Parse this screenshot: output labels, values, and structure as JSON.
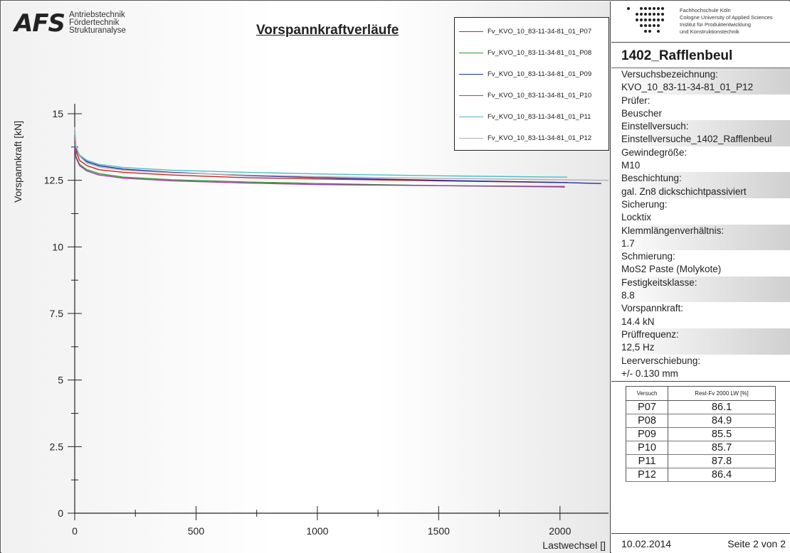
{
  "header": {
    "logo_mark": "AFS",
    "logo_lines": [
      "Antriebstechnik",
      "Fördertechnik",
      "Strukturanalyse"
    ],
    "chart_title": "Vorspannkraftverläufe"
  },
  "institute": {
    "lines": [
      "Fachhochschule Köln",
      "Cologne University of Applied Sciences",
      "Institut für Produktentwicklung",
      "und Konstruktionstechnik"
    ]
  },
  "project_title": "1402_Rafflenbeul",
  "info": [
    {
      "label": "Versuchsbezeichnung:",
      "value": "KVO_10_83-11-34-81_01_P12"
    },
    {
      "label": "Prüfer:",
      "value": "Beuscher"
    },
    {
      "label": "Einstellversuch:",
      "value": "Einstellversuche_1402_Rafflenbeul"
    },
    {
      "label": "Gewindegröße:",
      "value": "M10"
    },
    {
      "label": "Beschichtung:",
      "value": "gal. Zn8 dickschichtpassiviert"
    },
    {
      "label": "Sicherung:",
      "value": "Locktix"
    },
    {
      "label": "Klemmlängenverhältnis:",
      "value": "1.7"
    },
    {
      "label": "Schmierung:",
      "value": "MoS2 Paste (Molykote)"
    },
    {
      "label": "Festigkeitsklasse:",
      "value": "8.8"
    },
    {
      "label": "Vorspannkraft:",
      "value": "14.4 kN"
    },
    {
      "label": "Prüffrequenz:",
      "value": "12,5 Hz"
    },
    {
      "label": "Leerverschiebung:",
      "value": "+/- 0.130 mm"
    }
  ],
  "summary": {
    "headers": [
      "Versuch",
      "Rest-Fv 2000 LW [%]"
    ],
    "rows": [
      [
        "P07",
        "86.1"
      ],
      [
        "P08",
        "84.9"
      ],
      [
        "P09",
        "85.5"
      ],
      [
        "P10",
        "85.7"
      ],
      [
        "P11",
        "87.8"
      ],
      [
        "P12",
        "86.4"
      ]
    ]
  },
  "footer": {
    "date": "10.02.2014",
    "page": "Seite 2 von 2"
  },
  "chart_data": {
    "type": "line",
    "title": "Vorspannkraftverläufe",
    "xlabel": "Lastwechsel []",
    "ylabel": "Vorspannkraft [kN]",
    "xlim": [
      0,
      2200
    ],
    "ylim": [
      0,
      15
    ],
    "xticks": [
      0,
      500,
      1000,
      1500,
      2000
    ],
    "yticks": [
      0,
      2.5,
      5,
      7.5,
      10,
      12.5,
      15
    ],
    "yticks_labels": [
      "0",
      "2.5",
      "5",
      "7.5",
      "10",
      "12.5",
      "15"
    ],
    "grid": false,
    "legend_position": "top-right",
    "series": [
      {
        "name": "Fv_KVO_10_83-11-34-81_01_P07",
        "color": "#d42020",
        "x": [
          0,
          5,
          20,
          50,
          100,
          200,
          400,
          700,
          1000,
          1500,
          2000,
          2030
        ],
        "y": [
          14.1,
          13.6,
          13.25,
          13.05,
          12.9,
          12.8,
          12.7,
          12.6,
          12.55,
          12.48,
          12.42,
          12.42
        ]
      },
      {
        "name": "Fv_KVO_10_83-11-34-81_01_P08",
        "color": "#2e9a2e",
        "x": [
          0,
          5,
          20,
          50,
          100,
          200,
          400,
          700,
          1000,
          1500,
          2000,
          2020
        ],
        "y": [
          13.9,
          13.4,
          13.1,
          12.9,
          12.75,
          12.62,
          12.52,
          12.44,
          12.38,
          12.3,
          12.25,
          12.24
        ]
      },
      {
        "name": "Fv_KVO_10_83-11-34-81_01_P09",
        "color": "#1c2fa0",
        "x": [
          0,
          5,
          20,
          50,
          100,
          200,
          400,
          700,
          1000,
          1500,
          2000,
          2170
        ],
        "y": [
          14.2,
          13.7,
          13.4,
          13.2,
          13.05,
          12.92,
          12.8,
          12.68,
          12.6,
          12.5,
          12.42,
          12.38
        ]
      },
      {
        "name": "Fv_KVO_10_83-11-34-81_01_P10",
        "color": "#a93aa9",
        "x": [
          0,
          5,
          20,
          50,
          100,
          200,
          400,
          700,
          1000,
          1500,
          2000,
          2020
        ],
        "y": [
          13.8,
          13.35,
          13.05,
          12.85,
          12.7,
          12.58,
          12.48,
          12.4,
          12.34,
          12.3,
          12.27,
          12.27
        ]
      },
      {
        "name": "Fv_KVO_10_83-11-34-81_01_P11",
        "color": "#4dbcc3",
        "x": [
          0,
          5,
          20,
          50,
          100,
          200,
          400,
          700,
          1000,
          1500,
          2000,
          2030
        ],
        "y": [
          14.3,
          13.75,
          13.45,
          13.25,
          13.1,
          12.98,
          12.88,
          12.8,
          12.74,
          12.67,
          12.62,
          12.62
        ]
      },
      {
        "name": "Fv_KVO_10_83-11-34-81_01_P12",
        "color": "#b0b0b0",
        "x": [
          0,
          5,
          20,
          50,
          100,
          200,
          400,
          700,
          1000,
          1500,
          2000,
          2200
        ],
        "y": [
          14.5,
          13.8,
          13.4,
          13.15,
          13.0,
          12.88,
          12.78,
          12.7,
          12.64,
          12.57,
          12.52,
          12.5
        ]
      }
    ]
  }
}
